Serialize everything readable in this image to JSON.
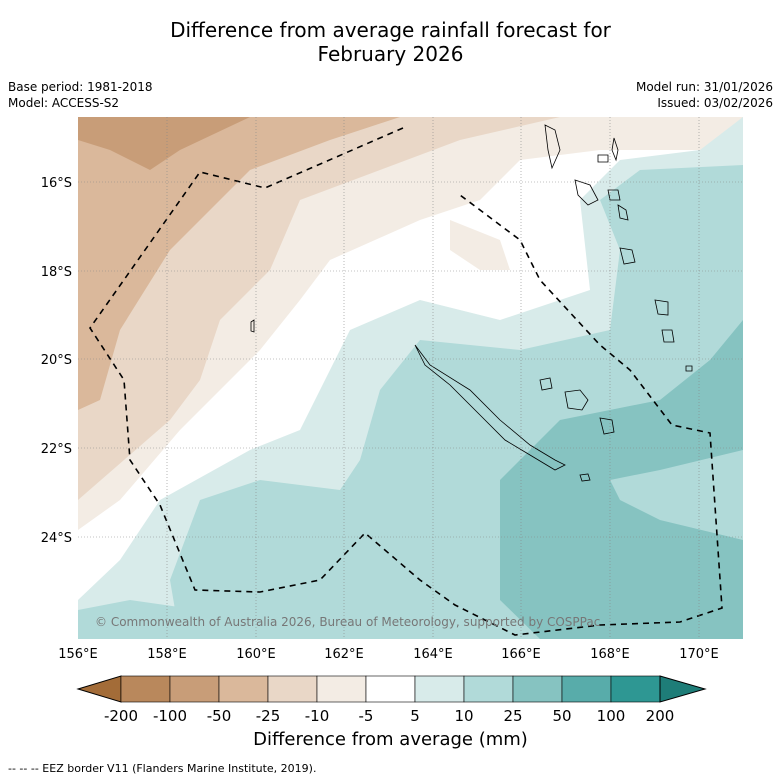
{
  "header": {
    "title_line1": "Difference from average rainfall forecast for",
    "title_line2": "February 2026",
    "base_period": "Base period: 1981-2018",
    "model": "Model: ACCESS-S2",
    "model_run": "Model run: 31/01/2026",
    "issued": "Issued: 03/02/2026"
  },
  "map": {
    "lat_labels": [
      "16°S",
      "18°S",
      "20°S",
      "22°S",
      "24°S"
    ],
    "lon_labels": [
      "156°E",
      "158°E",
      "160°E",
      "162°E",
      "164°E",
      "166°E",
      "168°E",
      "170°E"
    ],
    "copyright": "© Commonwealth of Australia 2026, Bureau of Meteorology, supported by COSPPac"
  },
  "legend": {
    "ticks": [
      "-200",
      "-100",
      "-50",
      "-25",
      "-10",
      "-5",
      "5",
      "10",
      "25",
      "50",
      "100",
      "200"
    ],
    "colors": [
      "#a36c38",
      "#b9885c",
      "#c89d78",
      "#dab89b",
      "#e9d7c7",
      "#f3ece4",
      "#ffffff",
      "#d8ebea",
      "#b1dad9",
      "#86c3c1",
      "#58acaa",
      "#2e9793",
      "#1e7d78"
    ],
    "title": "Difference from average (mm)"
  },
  "footnote": "--  --  -- EEZ border V11 (Flanders Marine Institute, 2019)."
}
